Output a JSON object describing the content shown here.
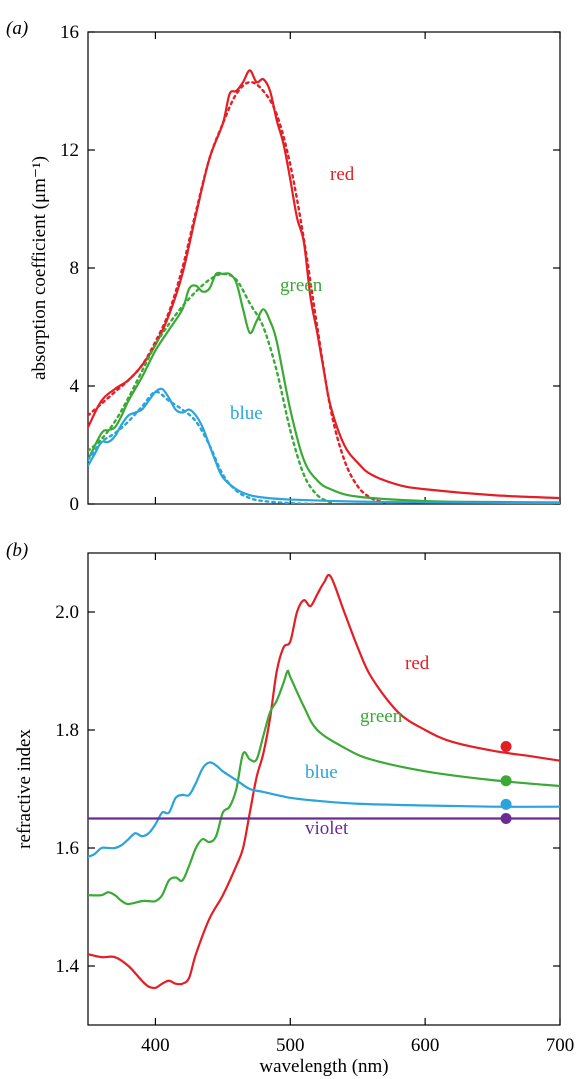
{
  "chart_data": [
    {
      "panel": "(a)",
      "type": "line",
      "xlabel": "",
      "ylabel": "absorption coefficient (μm⁻¹)",
      "xlim": [
        350,
        700
      ],
      "ylim": [
        0,
        16
      ],
      "yticks": [
        "0",
        "4",
        "8",
        "12",
        "16"
      ],
      "series": [
        {
          "name": "red",
          "color": "#e41e25",
          "style": "solid",
          "x": [
            350,
            360,
            370,
            380,
            390,
            400,
            410,
            420,
            430,
            440,
            450,
            455,
            460,
            465,
            470,
            475,
            480,
            485,
            490,
            495,
            500,
            505,
            510,
            515,
            520,
            525,
            530,
            540,
            550,
            560,
            580,
            600,
            650,
            700
          ],
          "y": [
            2.6,
            3.5,
            3.9,
            4.2,
            4.7,
            5.4,
            6.4,
            7.8,
            9.8,
            11.7,
            12.9,
            13.9,
            14.0,
            14.3,
            14.7,
            14.3,
            14.4,
            14.0,
            13.0,
            12.2,
            11.0,
            9.7,
            8.9,
            7.0,
            5.8,
            4.5,
            3.3,
            2.0,
            1.4,
            1.0,
            0.65,
            0.5,
            0.3,
            0.2
          ]
        },
        {
          "name": "red fit",
          "color": "#e41e25",
          "style": "dotted",
          "x": [
            350,
            360,
            370,
            380,
            390,
            400,
            410,
            420,
            430,
            440,
            450,
            460,
            470,
            480,
            490,
            500,
            510,
            520,
            530,
            540,
            550,
            560,
            570
          ],
          "y": [
            3.0,
            3.4,
            3.8,
            4.2,
            4.7,
            5.5,
            6.5,
            8.0,
            9.9,
            11.7,
            12.9,
            13.9,
            14.3,
            14.0,
            13.2,
            11.5,
            9.0,
            6.0,
            3.2,
            1.5,
            0.6,
            0.2,
            0.05
          ]
        },
        {
          "name": "green",
          "color": "#3aa935",
          "style": "solid",
          "x": [
            350,
            360,
            365,
            370,
            375,
            380,
            390,
            400,
            410,
            420,
            425,
            430,
            435,
            440,
            445,
            450,
            455,
            460,
            465,
            470,
            475,
            480,
            485,
            490,
            500,
            510,
            520,
            530,
            550,
            600,
            650,
            700
          ],
          "y": [
            1.5,
            2.4,
            2.5,
            2.6,
            3.0,
            3.5,
            4.3,
            5.2,
            5.9,
            6.6,
            7.3,
            7.4,
            7.2,
            7.3,
            7.8,
            7.8,
            7.8,
            7.5,
            6.6,
            5.8,
            6.2,
            6.6,
            6.2,
            5.5,
            3.2,
            1.5,
            0.8,
            0.5,
            0.25,
            0.1,
            0.07,
            0.05
          ]
        },
        {
          "name": "green fit",
          "color": "#3aa935",
          "style": "dotted",
          "x": [
            350,
            360,
            370,
            380,
            390,
            400,
            410,
            420,
            430,
            440,
            450,
            460,
            470,
            480,
            490,
            500,
            510,
            520,
            530
          ],
          "y": [
            1.8,
            2.2,
            2.8,
            3.6,
            4.5,
            5.4,
            6.1,
            6.7,
            7.2,
            7.6,
            7.8,
            7.6,
            6.8,
            6.0,
            4.5,
            2.5,
            1.0,
            0.3,
            0.05
          ]
        },
        {
          "name": "blue",
          "color": "#2ba4dc",
          "style": "solid",
          "x": [
            350,
            355,
            360,
            365,
            370,
            375,
            380,
            385,
            390,
            395,
            400,
            405,
            410,
            415,
            420,
            425,
            430,
            435,
            440,
            445,
            450,
            460,
            470,
            480,
            500,
            550,
            600,
            650,
            700
          ],
          "y": [
            1.3,
            1.7,
            2.1,
            2.1,
            2.3,
            2.7,
            3.0,
            3.1,
            3.2,
            3.5,
            3.8,
            3.9,
            3.6,
            3.2,
            3.1,
            3.2,
            3.0,
            2.6,
            2.0,
            1.4,
            0.9,
            0.5,
            0.3,
            0.22,
            0.15,
            0.08,
            0.05,
            0.04,
            0.03
          ]
        },
        {
          "name": "blue fit",
          "color": "#2ba4dc",
          "style": "dotted",
          "x": [
            350,
            360,
            370,
            380,
            390,
            400,
            410,
            420,
            430,
            440,
            450,
            460,
            470,
            480,
            500,
            520
          ],
          "y": [
            1.5,
            2.1,
            2.4,
            2.8,
            3.3,
            3.8,
            3.5,
            3.2,
            2.8,
            2.0,
            1.0,
            0.45,
            0.2,
            0.1,
            0.03,
            0.0
          ]
        }
      ],
      "labels": [
        {
          "text": "red",
          "color": "#e41e25"
        },
        {
          "text": "green",
          "color": "#3aa935"
        },
        {
          "text": "blue",
          "color": "#2ba4dc"
        }
      ]
    },
    {
      "panel": "(b)",
      "type": "line",
      "xlabel": "wavelength (nm)",
      "ylabel": "refractive index",
      "xlim": [
        350,
        700
      ],
      "ylim": [
        1.3,
        2.1
      ],
      "xticks": [
        "400",
        "500",
        "600",
        "700"
      ],
      "yticks": [
        "1.4",
        "1.6",
        "1.8",
        "2.0"
      ],
      "series": [
        {
          "name": "red",
          "color": "#e41e25",
          "style": "solid",
          "x": [
            350,
            360,
            370,
            380,
            390,
            395,
            400,
            405,
            410,
            415,
            420,
            425,
            430,
            440,
            450,
            460,
            465,
            470,
            475,
            480,
            485,
            490,
            495,
            500,
            505,
            510,
            515,
            520,
            525,
            530,
            540,
            550,
            560,
            580,
            600,
            620,
            650,
            680,
            700
          ],
          "y": [
            1.42,
            1.415,
            1.415,
            1.4,
            1.375,
            1.365,
            1.363,
            1.37,
            1.375,
            1.37,
            1.37,
            1.38,
            1.42,
            1.48,
            1.52,
            1.57,
            1.6,
            1.66,
            1.72,
            1.76,
            1.82,
            1.9,
            1.94,
            1.95,
            2.0,
            2.02,
            2.01,
            2.03,
            2.05,
            2.06,
            2.0,
            1.94,
            1.89,
            1.83,
            1.8,
            1.78,
            1.765,
            1.755,
            1.748
          ]
        },
        {
          "name": "green",
          "color": "#3aa935",
          "style": "solid",
          "x": [
            350,
            360,
            365,
            370,
            375,
            380,
            390,
            395,
            400,
            405,
            410,
            415,
            420,
            425,
            430,
            435,
            440,
            445,
            450,
            455,
            460,
            465,
            470,
            475,
            480,
            485,
            490,
            495,
            498,
            500,
            510,
            520,
            540,
            560,
            600,
            650,
            700
          ],
          "y": [
            1.52,
            1.52,
            1.525,
            1.52,
            1.51,
            1.505,
            1.51,
            1.51,
            1.51,
            1.52,
            1.545,
            1.55,
            1.545,
            1.57,
            1.6,
            1.615,
            1.61,
            1.62,
            1.66,
            1.67,
            1.7,
            1.76,
            1.75,
            1.75,
            1.79,
            1.83,
            1.85,
            1.88,
            1.9,
            1.89,
            1.84,
            1.8,
            1.77,
            1.75,
            1.73,
            1.715,
            1.705
          ]
        },
        {
          "name": "blue",
          "color": "#2ba4dc",
          "style": "solid",
          "x": [
            350,
            355,
            360,
            365,
            370,
            375,
            380,
            385,
            390,
            395,
            400,
            405,
            410,
            415,
            420,
            425,
            430,
            435,
            440,
            445,
            450,
            460,
            470,
            480,
            500,
            520,
            550,
            600,
            650,
            700
          ],
          "y": [
            1.585,
            1.59,
            1.6,
            1.6,
            1.6,
            1.605,
            1.615,
            1.625,
            1.62,
            1.625,
            1.64,
            1.66,
            1.66,
            1.685,
            1.69,
            1.69,
            1.71,
            1.735,
            1.745,
            1.74,
            1.73,
            1.715,
            1.7,
            1.695,
            1.685,
            1.68,
            1.675,
            1.672,
            1.67,
            1.67
          ]
        },
        {
          "name": "violet",
          "color": "#6a2c91",
          "style": "solid",
          "x": [
            350,
            700
          ],
          "y": [
            1.65,
            1.65
          ]
        }
      ],
      "markers": [
        {
          "series": "red",
          "x": 660,
          "y": 1.772,
          "color": "#e41e25"
        },
        {
          "series": "green",
          "x": 660,
          "y": 1.714,
          "color": "#3aa935"
        },
        {
          "series": "blue",
          "x": 660,
          "y": 1.674,
          "color": "#2ba4dc"
        },
        {
          "series": "violet",
          "x": 660,
          "y": 1.65,
          "color": "#6a2c91"
        }
      ],
      "labels": [
        {
          "text": "red",
          "color": "#e41e25"
        },
        {
          "text": "green",
          "color": "#3aa935"
        },
        {
          "text": "blue",
          "color": "#2ba4dc"
        },
        {
          "text": "violet",
          "color": "#6a2c91"
        }
      ]
    }
  ]
}
